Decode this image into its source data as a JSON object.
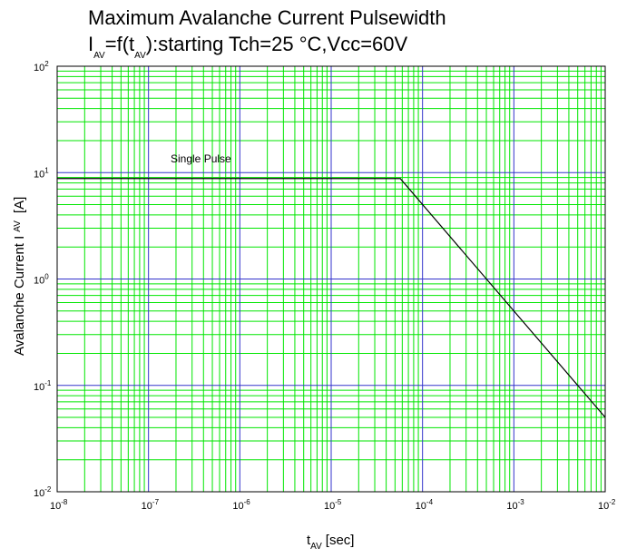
{
  "chart_data": {
    "type": "line",
    "title_main": "Maximum Avalanche Current Pulsewidth",
    "subtitle_parts": {
      "I": "I",
      "AV_sub": "AV",
      "mid1": "=f(t",
      "AV_sub2": "AV",
      "rest": "):starting Tch=25 ",
      "degree": "°",
      "tail": "C,Vcc=60V"
    },
    "xlabel_parts": {
      "t": "t",
      "AV": "AV",
      "unit": "[sec]"
    },
    "ylabel_parts": {
      "main": "Avalanche Current I",
      "AV": "AV",
      "unit": "[A]"
    },
    "x_scale": "log",
    "y_scale": "log",
    "xlim": [
      1e-08,
      0.01
    ],
    "ylim": [
      0.01,
      100.0
    ],
    "x_tick_exponents": [
      "-8",
      "-7",
      "-6",
      "-5",
      "-4",
      "-3",
      "-2"
    ],
    "y_tick_exponents": [
      "-2",
      "-1",
      "0",
      "1",
      "2"
    ],
    "tick_base": "10",
    "grid": true,
    "colors": {
      "minor_grid": "#00e600",
      "major_grid": "#3333cc",
      "line": "#000000"
    },
    "series": [
      {
        "x": [
          1e-08,
          5.7e-05,
          0.01
        ],
        "y": [
          8.8,
          8.8,
          0.05
        ]
      }
    ],
    "annotations": [
      {
        "text": "Single Pulse"
      }
    ]
  }
}
